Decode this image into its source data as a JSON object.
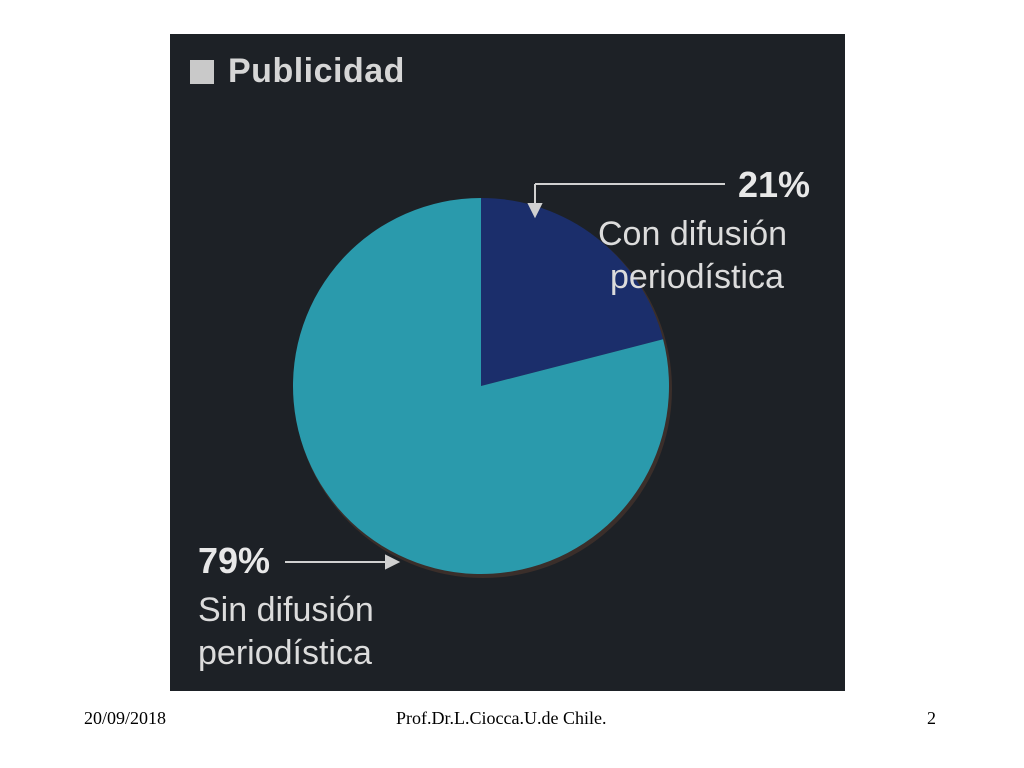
{
  "chart_data": {
    "type": "pie",
    "title": "Publicidad",
    "slices": [
      {
        "percent_label": "21%",
        "label_line1": "Con difusión",
        "label_line2": "periodística",
        "value": 21,
        "color": "#1b2e6b"
      },
      {
        "percent_label": "79%",
        "label_line1": "Sin difusión",
        "label_line2": "periodística",
        "value": 79,
        "color": "#2a9aac"
      }
    ],
    "background": "#1d2126"
  },
  "footer": {
    "date": "20/09/2018",
    "author": "Prof.Dr.L.Ciocca.U.de Chile.",
    "page": "2"
  }
}
